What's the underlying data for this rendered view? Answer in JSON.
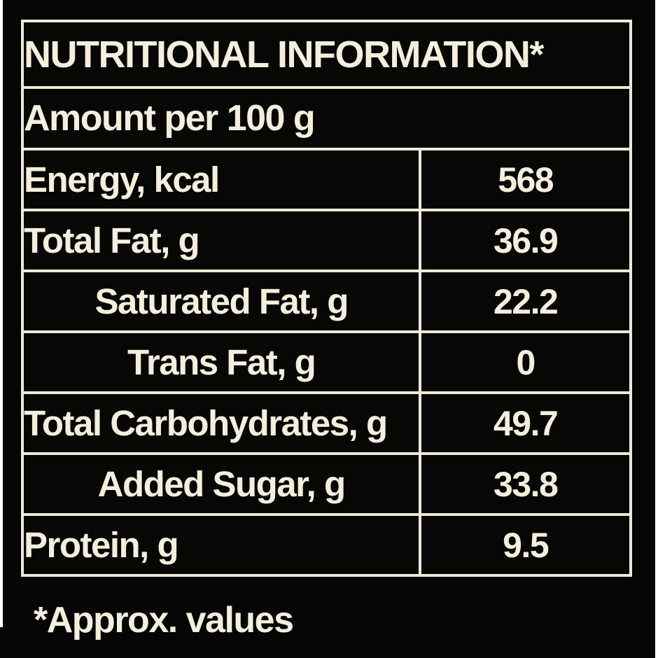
{
  "label": {
    "title": "NUTRITIONAL INFORMATION*",
    "serving_basis": "Amount per 100 g",
    "rows": [
      {
        "label": "Energy, kcal",
        "value": "568",
        "indent": false
      },
      {
        "label": "Total Fat, g",
        "value": "36.9",
        "indent": false
      },
      {
        "label": "Saturated Fat, g",
        "value": "22.2",
        "indent": true
      },
      {
        "label": "Trans Fat, g",
        "value": "0",
        "indent": true
      },
      {
        "label": "Total Carbohydrates, g",
        "value": "49.7",
        "indent": false
      },
      {
        "label": "Added Sugar, g",
        "value": "33.8",
        "indent": true
      },
      {
        "label": "Protein, g",
        "value": "9.5",
        "indent": false
      }
    ],
    "footnote": "*Approx. values"
  },
  "colors": {
    "background": "#050505",
    "rule_cream": "#eee9d6",
    "text_cream": "#f4efdc",
    "edge_white": "#ffffff"
  }
}
